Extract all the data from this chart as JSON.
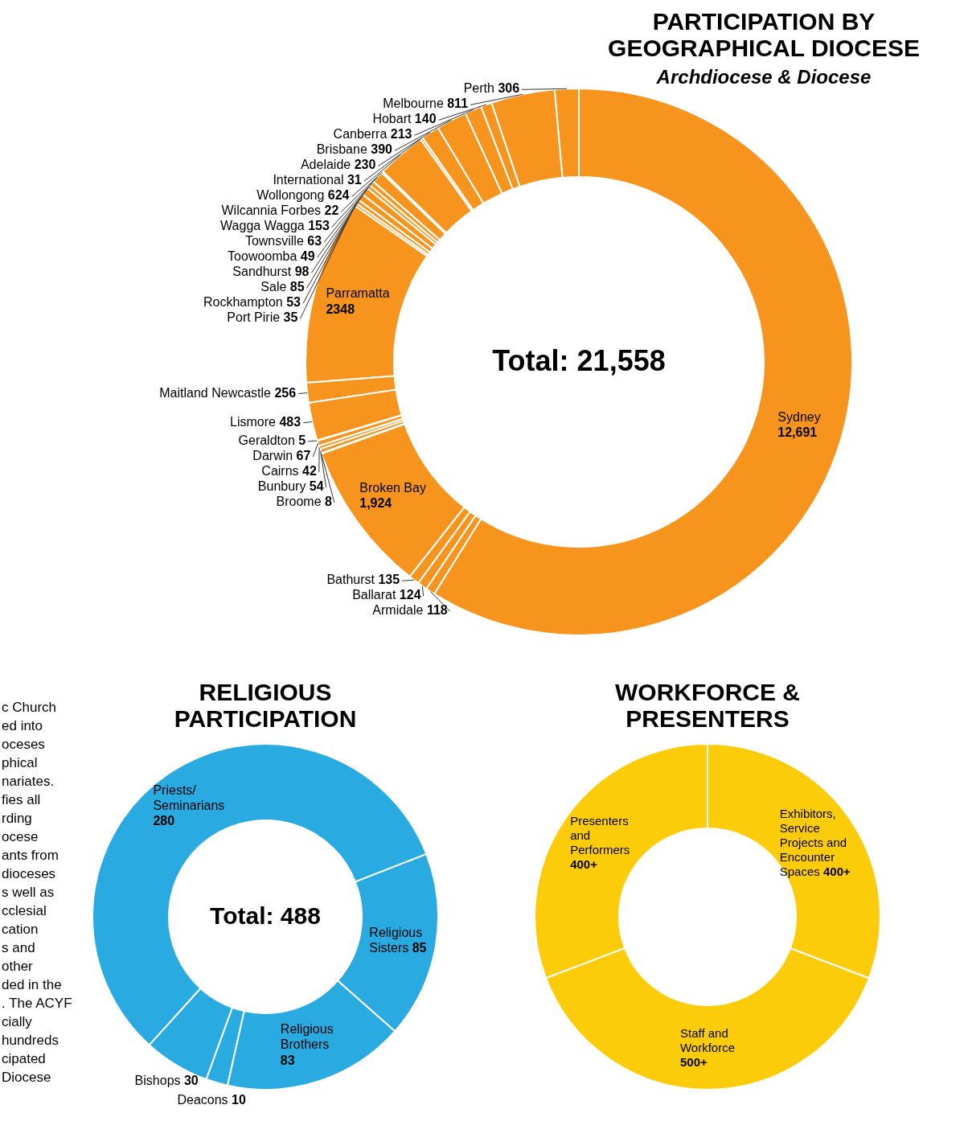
{
  "chart_data": [
    {
      "type": "donut",
      "title": "PARTICIPATION BY GEOGRAPHICAL DIOCESE",
      "subtitle": "Archdiocese & Diocese",
      "categories": [
        "Perth",
        "Melbourne",
        "Hobart",
        "Canberra",
        "Brisbane",
        "Adelaide",
        "International",
        "Wollongong",
        "Wilcannia Forbes",
        "Wagga Wagga",
        "Townsville",
        "Toowoomba",
        "Sandhurst",
        "Sale",
        "Rockhampton",
        "Port Pirie",
        "Parramatta",
        "Maitland Newcastle",
        "Lismore",
        "Geraldton",
        "Darwin",
        "Cairns",
        "Bunbury",
        "Broome",
        "Broken Bay",
        "Bathurst",
        "Ballarat",
        "Armidale",
        "Sydney"
      ],
      "values": [
        306,
        811,
        140,
        213,
        390,
        230,
        31,
        624,
        22,
        153,
        63,
        49,
        98,
        85,
        53,
        35,
        2348,
        256,
        483,
        5,
        67,
        42,
        54,
        8,
        1924,
        135,
        124,
        118,
        12691
      ],
      "value_labels": [
        "306",
        "811",
        "140",
        "213",
        "390",
        "230",
        "31",
        "624",
        "22",
        "153",
        "63",
        "49",
        "98",
        "85",
        "53",
        "35",
        "2348",
        "256",
        "483",
        "5",
        "67",
        "42",
        "54",
        "8",
        "1,924",
        "135",
        "124",
        "118",
        "12,691"
      ],
      "colors": [
        "#f7941d",
        "#f7941d",
        "#f7941d",
        "#f7941d",
        "#f7941d",
        "#f7941d",
        "#f7941d",
        "#f7941d",
        "#f7941d",
        "#f7941d",
        "#f7941d",
        "#f7941d",
        "#f7941d",
        "#f7941d",
        "#f7941d",
        "#f7941d",
        "#f7941d",
        "#f7941d",
        "#f7941d",
        "#f7941d",
        "#f7941d",
        "#f7941d",
        "#f7941d",
        "#f7941d",
        "#f7941d",
        "#f7941d",
        "#f7941d",
        "#f7941d",
        "#f7941d"
      ],
      "annotations": [
        "Total: 21,558"
      ]
    },
    {
      "type": "donut",
      "title": "RELIGIOUS PARTICIPATION",
      "categories": [
        "Deacons",
        "Religious Brothers",
        "Religious Sisters",
        "Priests/ Seminarians",
        "Bishops"
      ],
      "values": [
        10,
        83,
        85,
        280,
        30
      ],
      "data_labels": true,
      "colors": [
        "#29abe2",
        "#29abe2",
        "#29abe2",
        "#29abe2",
        "#29abe2"
      ],
      "annotations": [
        "Total: 488",
        "c Church\ned into\noceses\nphical\nnariates.\nfies all\nrding\nocese\nants from\ndioceses\ns well as\ncclesial\ncation\ns and\nother\nded in the\n. The ACYF\ncially\nhundreds\ncipated\nDiocese"
      ]
    },
    {
      "type": "donut",
      "title": "WORKFORCE & PRESENTERS",
      "categories": [
        "Presenters and Performers",
        "Staff and Workforce",
        "Exhibitors, Service Projects and Encounter Spaces"
      ],
      "values": [
        400,
        500,
        400
      ],
      "value_labels": [
        "400+",
        "500+",
        "400+"
      ],
      "colors": [
        "#fccc0a",
        "#fccc0a",
        "#fccc0a"
      ]
    }
  ]
}
